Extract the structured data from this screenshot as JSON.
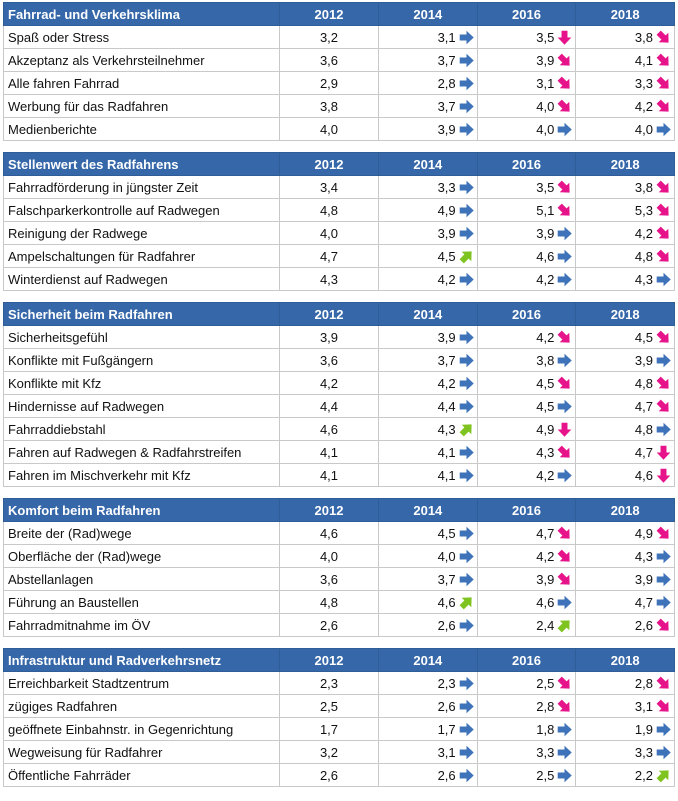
{
  "colors": {
    "header_bg": "#3567a9",
    "arrow_same": "#3f73b9",
    "arrow_worse": "#e6138a",
    "arrow_better": "#7ec31f"
  },
  "years": [
    "2012",
    "2014",
    "2016",
    "2018"
  ],
  "sections": [
    {
      "title": "Fahrrad- und Verkehrsklima",
      "rows": [
        {
          "label": "Spaß oder Stress",
          "v2012": "3,2",
          "cells": [
            {
              "value": "3,1",
              "trend": "same"
            },
            {
              "value": "3,5",
              "trend": "worse-down"
            },
            {
              "value": "3,8",
              "trend": "worse"
            }
          ]
        },
        {
          "label": "Akzeptanz als Verkehrsteilnehmer",
          "v2012": "3,6",
          "cells": [
            {
              "value": "3,7",
              "trend": "same"
            },
            {
              "value": "3,9",
              "trend": "worse"
            },
            {
              "value": "4,1",
              "trend": "worse"
            }
          ]
        },
        {
          "label": "Alle fahren Fahrrad",
          "v2012": "2,9",
          "cells": [
            {
              "value": "2,8",
              "trend": "same"
            },
            {
              "value": "3,1",
              "trend": "worse"
            },
            {
              "value": "3,3",
              "trend": "worse"
            }
          ]
        },
        {
          "label": "Werbung für das Radfahren",
          "v2012": "3,8",
          "cells": [
            {
              "value": "3,7",
              "trend": "same"
            },
            {
              "value": "4,0",
              "trend": "worse"
            },
            {
              "value": "4,2",
              "trend": "worse"
            }
          ]
        },
        {
          "label": "Medienberichte",
          "v2012": "4,0",
          "cells": [
            {
              "value": "3,9",
              "trend": "same"
            },
            {
              "value": "4,0",
              "trend": "same"
            },
            {
              "value": "4,0",
              "trend": "same"
            }
          ]
        }
      ]
    },
    {
      "title": "Stellenwert des Radfahrens",
      "rows": [
        {
          "label": "Fahrradförderung in jüngster Zeit",
          "v2012": "3,4",
          "cells": [
            {
              "value": "3,3",
              "trend": "same"
            },
            {
              "value": "3,5",
              "trend": "worse"
            },
            {
              "value": "3,8",
              "trend": "worse"
            }
          ]
        },
        {
          "label": "Falschparkerkontrolle auf Radwegen",
          "v2012": "4,8",
          "cells": [
            {
              "value": "4,9",
              "trend": "same"
            },
            {
              "value": "5,1",
              "trend": "worse"
            },
            {
              "value": "5,3",
              "trend": "worse"
            }
          ]
        },
        {
          "label": "Reinigung der Radwege",
          "v2012": "4,0",
          "cells": [
            {
              "value": "3,9",
              "trend": "same"
            },
            {
              "value": "3,9",
              "trend": "same"
            },
            {
              "value": "4,2",
              "trend": "worse"
            }
          ]
        },
        {
          "label": "Ampelschaltungen für Radfahrer",
          "v2012": "4,7",
          "cells": [
            {
              "value": "4,5",
              "trend": "better"
            },
            {
              "value": "4,6",
              "trend": "same"
            },
            {
              "value": "4,8",
              "trend": "worse"
            }
          ]
        },
        {
          "label": "Winterdienst auf Radwegen",
          "v2012": "4,3",
          "cells": [
            {
              "value": "4,2",
              "trend": "same"
            },
            {
              "value": "4,2",
              "trend": "same"
            },
            {
              "value": "4,3",
              "trend": "same"
            }
          ]
        }
      ]
    },
    {
      "title": "Sicherheit beim Radfahren",
      "rows": [
        {
          "label": "Sicherheitsgefühl",
          "v2012": "3,9",
          "cells": [
            {
              "value": "3,9",
              "trend": "same"
            },
            {
              "value": "4,2",
              "trend": "worse"
            },
            {
              "value": "4,5",
              "trend": "worse"
            }
          ]
        },
        {
          "label": "Konflikte mit Fußgängern",
          "v2012": "3,6",
          "cells": [
            {
              "value": "3,7",
              "trend": "same"
            },
            {
              "value": "3,8",
              "trend": "same"
            },
            {
              "value": "3,9",
              "trend": "same"
            }
          ]
        },
        {
          "label": "Konflikte mit Kfz",
          "v2012": "4,2",
          "cells": [
            {
              "value": "4,2",
              "trend": "same"
            },
            {
              "value": "4,5",
              "trend": "worse"
            },
            {
              "value": "4,8",
              "trend": "worse"
            }
          ]
        },
        {
          "label": "Hindernisse auf Radwegen",
          "v2012": "4,4",
          "cells": [
            {
              "value": "4,4",
              "trend": "same"
            },
            {
              "value": "4,5",
              "trend": "same"
            },
            {
              "value": "4,7",
              "trend": "worse"
            }
          ]
        },
        {
          "label": "Fahrraddiebstahl",
          "v2012": "4,6",
          "cells": [
            {
              "value": "4,3",
              "trend": "better"
            },
            {
              "value": "4,9",
              "trend": "worse-down"
            },
            {
              "value": "4,8",
              "trend": "same"
            }
          ]
        },
        {
          "label": "Fahren auf Radwegen & Radfahrstreifen",
          "v2012": "4,1",
          "cells": [
            {
              "value": "4,1",
              "trend": "same"
            },
            {
              "value": "4,3",
              "trend": "worse"
            },
            {
              "value": "4,7",
              "trend": "worse-down"
            }
          ]
        },
        {
          "label": "Fahren im Mischverkehr mit Kfz",
          "v2012": "4,1",
          "cells": [
            {
              "value": "4,1",
              "trend": "same"
            },
            {
              "value": "4,2",
              "trend": "same"
            },
            {
              "value": "4,6",
              "trend": "worse-down"
            }
          ]
        }
      ]
    },
    {
      "title": "Komfort beim Radfahren",
      "rows": [
        {
          "label": "Breite der (Rad)wege",
          "v2012": "4,6",
          "cells": [
            {
              "value": "4,5",
              "trend": "same"
            },
            {
              "value": "4,7",
              "trend": "worse"
            },
            {
              "value": "4,9",
              "trend": "worse"
            }
          ]
        },
        {
          "label": "Oberfläche der (Rad)wege",
          "v2012": "4,0",
          "cells": [
            {
              "value": "4,0",
              "trend": "same"
            },
            {
              "value": "4,2",
              "trend": "worse"
            },
            {
              "value": "4,3",
              "trend": "same"
            }
          ]
        },
        {
          "label": "Abstellanlagen",
          "v2012": "3,6",
          "cells": [
            {
              "value": "3,7",
              "trend": "same"
            },
            {
              "value": "3,9",
              "trend": "worse"
            },
            {
              "value": "3,9",
              "trend": "same"
            }
          ]
        },
        {
          "label": "Führung an Baustellen",
          "v2012": "4,8",
          "cells": [
            {
              "value": "4,6",
              "trend": "better"
            },
            {
              "value": "4,6",
              "trend": "same"
            },
            {
              "value": "4,7",
              "trend": "same"
            }
          ]
        },
        {
          "label": "Fahrradmitnahme im ÖV",
          "v2012": "2,6",
          "cells": [
            {
              "value": "2,6",
              "trend": "same"
            },
            {
              "value": "2,4",
              "trend": "better"
            },
            {
              "value": "2,6",
              "trend": "worse"
            }
          ]
        }
      ]
    },
    {
      "title": "Infrastruktur und Radverkehrsnetz",
      "rows": [
        {
          "label": "Erreichbarkeit Stadtzentrum",
          "v2012": "2,3",
          "cells": [
            {
              "value": "2,3",
              "trend": "same"
            },
            {
              "value": "2,5",
              "trend": "worse"
            },
            {
              "value": "2,8",
              "trend": "worse"
            }
          ]
        },
        {
          "label": "zügiges Radfahren",
          "v2012": "2,5",
          "cells": [
            {
              "value": "2,6",
              "trend": "same"
            },
            {
              "value": "2,8",
              "trend": "worse"
            },
            {
              "value": "3,1",
              "trend": "worse"
            }
          ]
        },
        {
          "label": "geöffnete Einbahnstr. in Gegenrichtung",
          "v2012": "1,7",
          "cells": [
            {
              "value": "1,7",
              "trend": "same"
            },
            {
              "value": "1,8",
              "trend": "same"
            },
            {
              "value": "1,9",
              "trend": "same"
            }
          ]
        },
        {
          "label": "Wegweisung für Radfahrer",
          "v2012": "3,2",
          "cells": [
            {
              "value": "3,1",
              "trend": "same"
            },
            {
              "value": "3,3",
              "trend": "same"
            },
            {
              "value": "3,3",
              "trend": "same"
            }
          ]
        },
        {
          "label": "Öffentliche Fahrräder",
          "v2012": "2,6",
          "cells": [
            {
              "value": "2,6",
              "trend": "same"
            },
            {
              "value": "2,5",
              "trend": "same"
            },
            {
              "value": "2,2",
              "trend": "better"
            }
          ]
        }
      ]
    }
  ]
}
